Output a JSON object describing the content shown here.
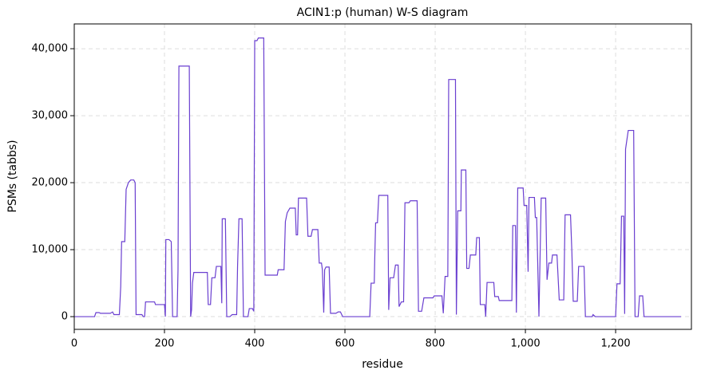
{
  "chart_data": {
    "type": "line",
    "title": "ACIN1:p (human) W-S diagram",
    "xlabel": "residue",
    "ylabel": "PSMs (tabbs)",
    "series": [
      {
        "name": "ACIN1:p",
        "color": "#6a3fd0",
        "x": [
          0,
          45,
          48,
          55,
          58,
          80,
          85,
          88,
          100,
          103,
          105,
          112,
          115,
          120,
          125,
          132,
          135,
          137,
          150,
          153,
          156,
          158,
          178,
          180,
          200,
          202,
          203,
          210,
          215,
          218,
          228,
          230,
          232,
          255,
          258,
          260,
          262,
          265,
          295,
          297,
          302,
          305,
          312,
          315,
          325,
          327,
          328,
          335,
          338,
          345,
          350,
          360,
          362,
          365,
          372,
          375,
          385,
          388,
          395,
          398,
          400,
          405,
          408,
          420,
          423,
          450,
          452,
          465,
          468,
          472,
          478,
          490,
          492,
          495,
          497,
          515,
          518,
          525,
          528,
          540,
          543,
          548,
          550,
          553,
          555,
          558,
          565,
          568,
          580,
          585,
          590,
          595,
          655,
          658,
          665,
          666,
          668,
          672,
          675,
          695,
          697,
          700,
          708,
          712,
          718,
          720,
          725,
          730,
          733,
          742,
          745,
          760,
          763,
          770,
          775,
          795,
          798,
          815,
          818,
          822,
          828,
          830,
          845,
          847,
          850,
          857,
          858,
          868,
          870,
          875,
          878,
          890,
          892,
          898,
          900,
          910,
          912,
          915,
          930,
          932,
          940,
          942,
          970,
          972,
          978,
          980,
          983,
          995,
          997,
          1003,
          1006,
          1008,
          1020,
          1022,
          1025,
          1030,
          1035,
          1045,
          1048,
          1052,
          1058,
          1060,
          1070,
          1075,
          1085,
          1088,
          1100,
          1103,
          1106,
          1115,
          1118,
          1130,
          1133,
          1148,
          1150,
          1155,
          1200,
          1203,
          1210,
          1213,
          1218,
          1220,
          1222,
          1228,
          1240,
          1243,
          1250,
          1253,
          1260,
          1263,
          1345
        ],
        "values": [
          0,
          0,
          600,
          600,
          500,
          500,
          700,
          300,
          300,
          4500,
          11200,
          11200,
          19000,
          20000,
          20400,
          20400,
          20000,
          300,
          300,
          0,
          0,
          2200,
          2200,
          1800,
          1800,
          0,
          11500,
          11500,
          11200,
          0,
          0,
          7000,
          37400,
          37400,
          0,
          1000,
          5000,
          6600,
          6600,
          1800,
          1800,
          5800,
          5800,
          7500,
          7500,
          2000,
          14600,
          14600,
          0,
          0,
          300,
          300,
          7500,
          14600,
          14600,
          0,
          0,
          1200,
          1200,
          800,
          41200,
          41200,
          41600,
          41600,
          6200,
          6200,
          7000,
          7000,
          14200,
          15500,
          16200,
          16200,
          12200,
          12200,
          17700,
          17700,
          12000,
          12000,
          13000,
          13000,
          8000,
          8000,
          7000,
          600,
          7000,
          7400,
          7400,
          500,
          500,
          700,
          700,
          0,
          0,
          5000,
          5000,
          8500,
          14000,
          14000,
          18100,
          18100,
          1000,
          5800,
          5800,
          7700,
          7700,
          1500,
          2200,
          2200,
          17000,
          17000,
          17300,
          17300,
          800,
          800,
          2800,
          2800,
          3100,
          3100,
          500,
          6000,
          6000,
          35400,
          35400,
          300,
          15800,
          15800,
          21900,
          21900,
          7200,
          7200,
          9200,
          9200,
          11800,
          11800,
          1800,
          1800,
          0,
          5100,
          5100,
          3000,
          3000,
          2400,
          2400,
          13600,
          13600,
          600,
          19200,
          19200,
          16600,
          16600,
          6700,
          17800,
          17800,
          14800,
          14800,
          0,
          17700,
          17700,
          5500,
          8000,
          8000,
          9200,
          9200,
          2500,
          2500,
          15200,
          15200,
          9700,
          2300,
          2300,
          7500,
          7500,
          0,
          0,
          300,
          0,
          0,
          4900,
          4900,
          15000,
          15000,
          400,
          25000,
          27800,
          27800,
          0,
          0,
          3100,
          3100,
          0,
          0
        ]
      }
    ],
    "xlim": [
      0,
      1368
    ],
    "ylim": [
      -1900,
      43700
    ],
    "xticks": [
      0,
      200,
      400,
      600,
      800,
      {
        "value": 1000,
        "label": "1,000"
      },
      {
        "value": 1200,
        "label": "1,200"
      }
    ],
    "yticks": [
      0,
      {
        "value": 10000,
        "label": "10,000"
      },
      {
        "value": 20000,
        "label": "20,000"
      },
      {
        "value": 30000,
        "label": "30,000"
      },
      {
        "value": 40000,
        "label": "40,000"
      }
    ],
    "grid": true
  }
}
